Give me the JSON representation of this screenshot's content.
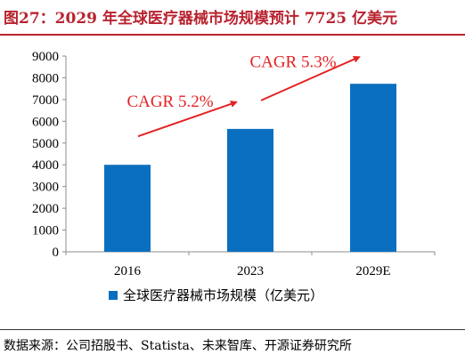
{
  "title": "图27：2029 年全球医疗器械市场规模预计 7725 亿美元",
  "source": "数据来源：公司招股书、Statista、未来智库、开源证券研究所",
  "colors": {
    "title": "#b8232f",
    "bar": "#0b6fbf",
    "annotation": "#e32224",
    "axis": "#8c8c8c"
  },
  "chart_data": {
    "type": "bar",
    "categories": [
      "2016",
      "2023",
      "2029E"
    ],
    "series": [
      {
        "name": "全球医疗器械市场规模（亿美元）",
        "values": [
          4000,
          5650,
          7725
        ]
      }
    ],
    "ylim": [
      0,
      9000
    ],
    "yticks": [
      "0",
      "1000",
      "2000",
      "3000",
      "4000",
      "5000",
      "6000",
      "7000",
      "8000",
      "9000"
    ],
    "grid": false,
    "legend_position": "bottom",
    "annotations": [
      "CAGR 5.2%",
      "CAGR 5.3%"
    ]
  }
}
